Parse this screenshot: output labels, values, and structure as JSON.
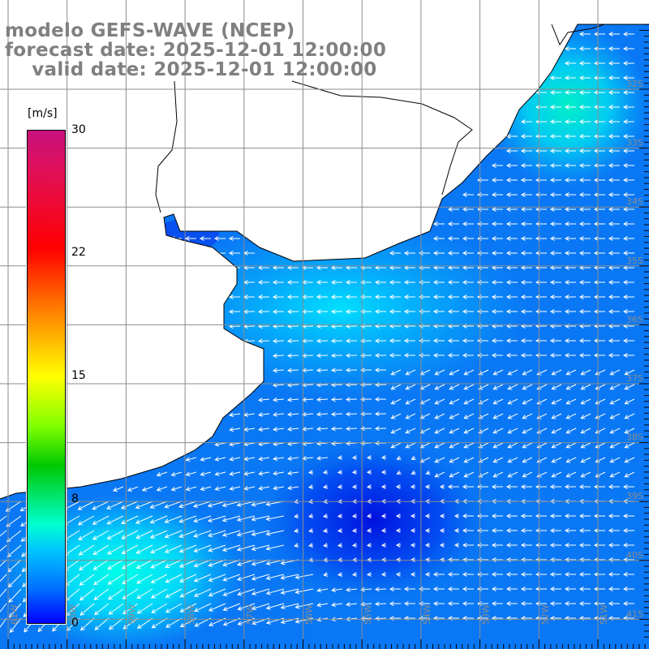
{
  "title": {
    "model": "modelo GEFS-WAVE (NCEP)",
    "forecast": "forecast date: 2025-12-01 12:00:00",
    "valid": "    valid date: 2025-12-01 12:00:00"
  },
  "colorbar": {
    "unit": "[m/s]",
    "ticks": [
      "30",
      "22",
      "15",
      "8",
      "0"
    ],
    "colors": [
      "#c8107c",
      "#ff0000",
      "#ff7a00",
      "#ffff00",
      "#00c800",
      "#00ffd0",
      "#0070ff",
      "#0000ff"
    ]
  },
  "grid": {
    "lat_labels": [
      "32S",
      "33S",
      "34S",
      "35S",
      "36S",
      "37S",
      "38S",
      "39S",
      "40S",
      "41S"
    ],
    "lon_labels": [
      "61W",
      "60W",
      "59W",
      "58W",
      "57W",
      "56W",
      "55W",
      "54W",
      "53W",
      "52W",
      "51W"
    ]
  }
}
